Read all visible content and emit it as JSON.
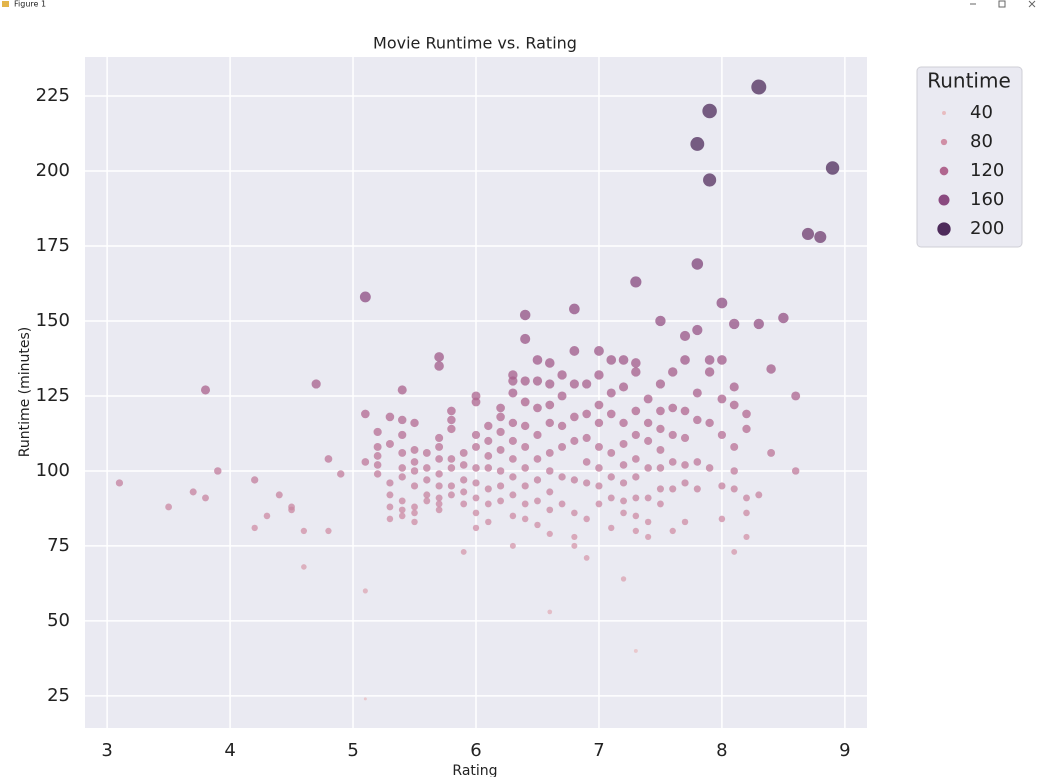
{
  "window": {
    "title": "Figure 1"
  },
  "chart_data": {
    "type": "scatter",
    "title": "Movie Runtime vs. Rating",
    "x_label": "Rating",
    "y_label": "Runtime (minutes)",
    "xlim": [
      2.82,
      9.18
    ],
    "ylim": [
      14.3,
      238
    ],
    "xticks": [
      3,
      4,
      5,
      6,
      7,
      8,
      9
    ],
    "yticks": [
      25,
      50,
      75,
      100,
      125,
      150,
      175,
      200,
      225
    ],
    "grid": true,
    "legend": {
      "title": "Runtime",
      "position": "outside-upper-right",
      "values": [
        40,
        80,
        120,
        160,
        200
      ],
      "colors": [
        "#e8bcc0",
        "#d08fa6",
        "#b0668f",
        "#8a4a80",
        "#4e2b5b"
      ]
    },
    "x": [
      3.1,
      3.5,
      3.7,
      3.8,
      3.8,
      3.9,
      4.2,
      4.2,
      4.3,
      4.4,
      4.5,
      4.5,
      4.6,
      4.6,
      4.7,
      4.8,
      4.8,
      4.9,
      5.1,
      5.1,
      5.1,
      5.1,
      5.1,
      5.2,
      5.2,
      5.2,
      5.2,
      5.2,
      5.3,
      5.3,
      5.3,
      5.3,
      5.3,
      5.3,
      5.4,
      5.4,
      5.4,
      5.4,
      5.4,
      5.4,
      5.4,
      5.4,
      5.4,
      5.5,
      5.5,
      5.5,
      5.5,
      5.5,
      5.5,
      5.5,
      5.5,
      5.6,
      5.6,
      5.6,
      5.6,
      5.6,
      5.7,
      5.7,
      5.7,
      5.7,
      5.7,
      5.7,
      5.7,
      5.7,
      5.7,
      5.7,
      5.8,
      5.8,
      5.8,
      5.8,
      5.8,
      5.8,
      5.8,
      5.9,
      5.9,
      5.9,
      5.9,
      5.9,
      5.9,
      6.0,
      6.0,
      6.0,
      6.0,
      6.0,
      6.0,
      6.0,
      6.0,
      6.0,
      6.1,
      6.1,
      6.1,
      6.1,
      6.1,
      6.1,
      6.1,
      6.2,
      6.2,
      6.2,
      6.2,
      6.2,
      6.2,
      6.2,
      6.3,
      6.3,
      6.3,
      6.3,
      6.3,
      6.3,
      6.3,
      6.3,
      6.3,
      6.3,
      6.4,
      6.4,
      6.4,
      6.4,
      6.4,
      6.4,
      6.4,
      6.4,
      6.4,
      6.4,
      6.5,
      6.5,
      6.5,
      6.5,
      6.5,
      6.5,
      6.5,
      6.5,
      6.6,
      6.6,
      6.6,
      6.6,
      6.6,
      6.6,
      6.6,
      6.6,
      6.6,
      6.6,
      6.7,
      6.7,
      6.7,
      6.7,
      6.7,
      6.7,
      6.8,
      6.8,
      6.8,
      6.8,
      6.8,
      6.8,
      6.8,
      6.8,
      6.8,
      6.9,
      6.9,
      6.9,
      6.9,
      6.9,
      6.9,
      6.9,
      7.0,
      7.0,
      7.0,
      7.0,
      7.0,
      7.0,
      7.0,
      7.0,
      7.1,
      7.1,
      7.1,
      7.1,
      7.1,
      7.1,
      7.1,
      7.2,
      7.2,
      7.2,
      7.2,
      7.2,
      7.2,
      7.2,
      7.2,
      7.2,
      7.3,
      7.3,
      7.3,
      7.3,
      7.3,
      7.3,
      7.3,
      7.3,
      7.3,
      7.3,
      7.3,
      7.4,
      7.4,
      7.4,
      7.4,
      7.4,
      7.4,
      7.4,
      7.5,
      7.5,
      7.5,
      7.5,
      7.5,
      7.5,
      7.5,
      7.5,
      7.6,
      7.6,
      7.6,
      7.6,
      7.6,
      7.6,
      7.7,
      7.7,
      7.7,
      7.7,
      7.7,
      7.7,
      7.7,
      7.8,
      7.8,
      7.8,
      7.8,
      7.8,
      7.8,
      7.8,
      7.9,
      7.9,
      7.9,
      7.9,
      7.9,
      7.9,
      8.0,
      8.0,
      8.0,
      8.0,
      8.0,
      8.0,
      8.1,
      8.1,
      8.1,
      8.1,
      8.1,
      8.1,
      8.1,
      8.2,
      8.2,
      8.2,
      8.2,
      8.2,
      8.3,
      8.3,
      8.3,
      8.4,
      8.4,
      8.5,
      8.6,
      8.6,
      8.7,
      8.8,
      8.9
    ],
    "values": [
      96,
      88,
      93,
      91,
      127,
      100,
      97,
      81,
      85,
      92,
      88,
      87,
      80,
      68,
      129,
      104,
      80,
      99,
      158,
      119,
      103,
      60,
      24,
      113,
      108,
      105,
      102,
      99,
      118,
      109,
      96,
      92,
      88,
      84,
      127,
      117,
      112,
      106,
      101,
      98,
      90,
      87,
      85,
      116,
      107,
      103,
      100,
      95,
      88,
      86,
      83,
      106,
      101,
      97,
      92,
      90,
      138,
      135,
      111,
      108,
      104,
      99,
      95,
      91,
      89,
      87,
      120,
      117,
      114,
      104,
      101,
      95,
      92,
      106,
      102,
      97,
      93,
      89,
      73,
      125,
      123,
      112,
      108,
      101,
      96,
      91,
      86,
      81,
      115,
      110,
      105,
      101,
      94,
      89,
      83,
      121,
      118,
      113,
      107,
      100,
      95,
      90,
      132,
      130,
      126,
      116,
      110,
      104,
      98,
      92,
      85,
      75,
      152,
      144,
      130,
      123,
      115,
      108,
      101,
      95,
      89,
      84,
      137,
      130,
      121,
      112,
      104,
      97,
      90,
      82,
      136,
      129,
      122,
      116,
      106,
      100,
      93,
      87,
      79,
      53,
      132,
      125,
      115,
      108,
      98,
      89,
      154,
      140,
      129,
      118,
      110,
      97,
      86,
      78,
      75,
      129,
      119,
      111,
      103,
      96,
      84,
      71,
      140,
      132,
      122,
      116,
      108,
      101,
      95,
      89,
      137,
      126,
      119,
      106,
      98,
      91,
      81,
      137,
      128,
      116,
      109,
      102,
      96,
      90,
      86,
      64,
      163,
      136,
      133,
      120,
      112,
      104,
      98,
      91,
      85,
      80,
      40,
      124,
      116,
      110,
      101,
      91,
      83,
      78,
      150,
      129,
      120,
      114,
      107,
      101,
      94,
      89,
      133,
      121,
      112,
      103,
      94,
      80,
      145,
      137,
      120,
      111,
      102,
      96,
      83,
      209,
      169,
      147,
      126,
      117,
      103,
      94,
      220,
      197,
      137,
      133,
      116,
      101,
      156,
      137,
      124,
      112,
      95,
      84,
      149,
      128,
      122,
      108,
      100,
      94,
      73,
      119,
      114,
      91,
      86,
      78,
      228,
      149,
      92,
      134,
      106,
      151,
      125,
      100,
      179,
      178,
      201
    ]
  }
}
